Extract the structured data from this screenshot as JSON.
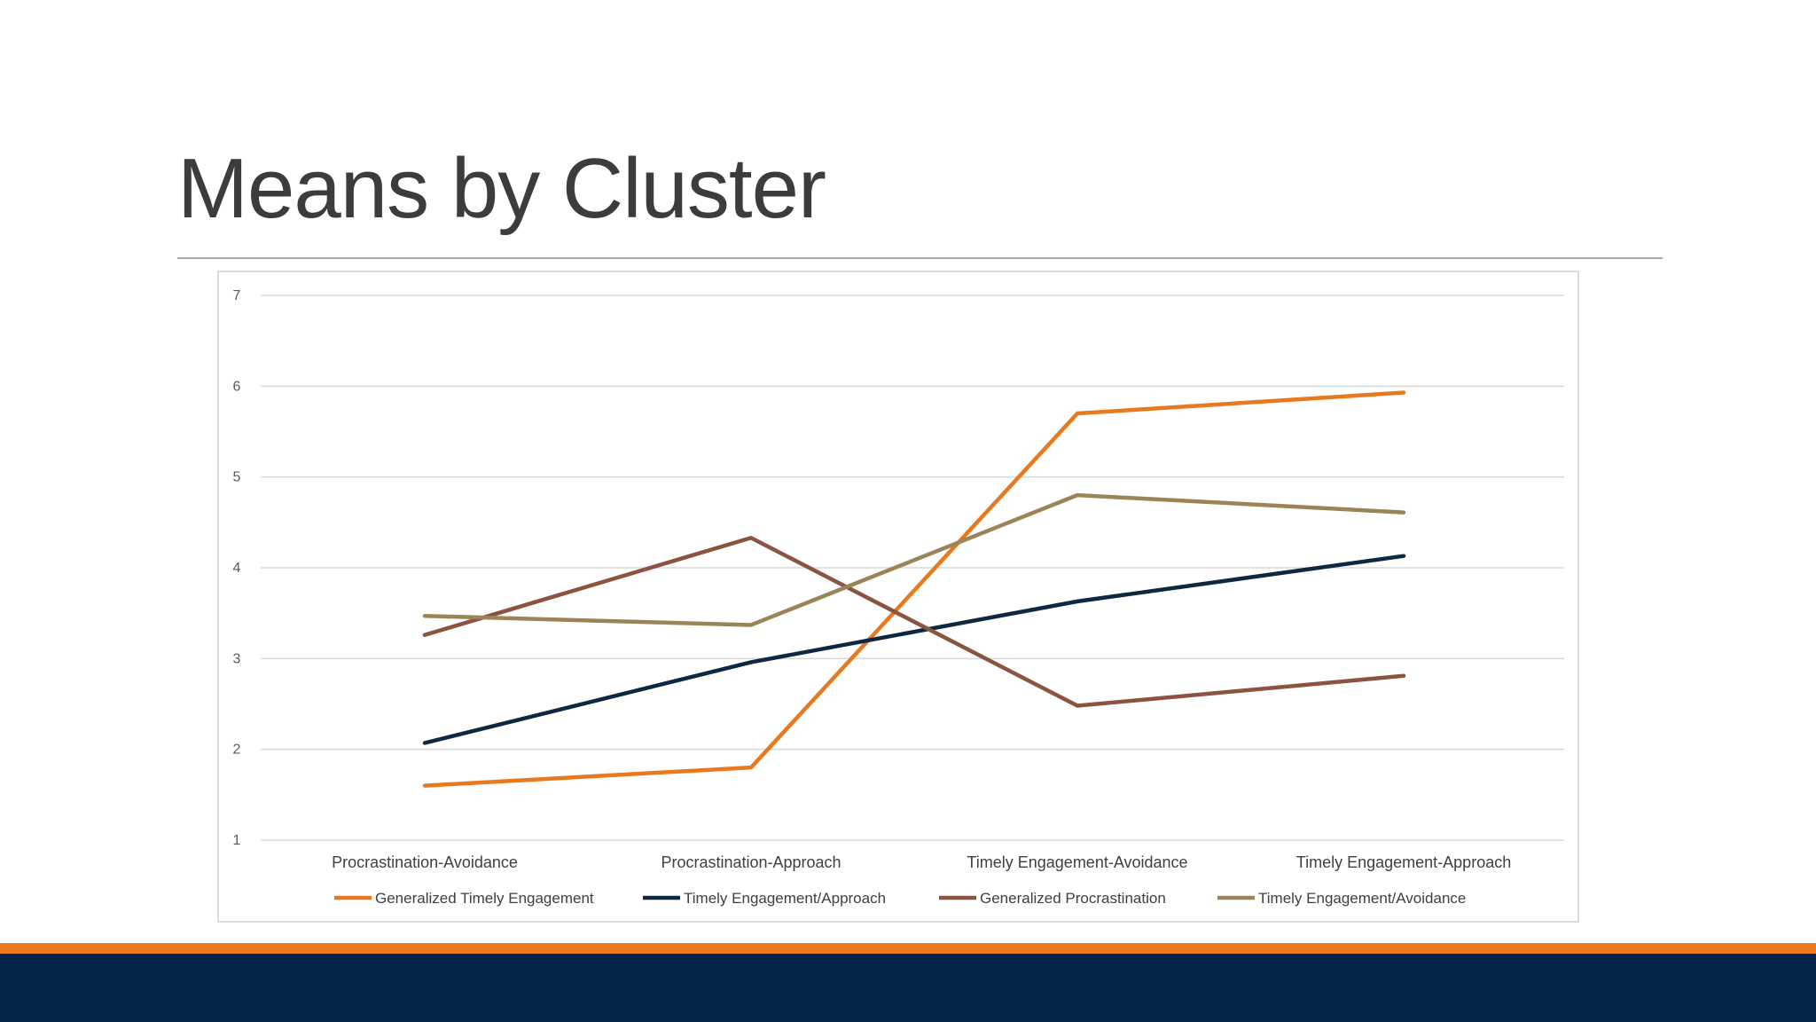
{
  "slide": {
    "title": "Means by Cluster"
  },
  "colors": {
    "accent_orange": "#e8791e",
    "navy": "#04244a",
    "title_text": "#3c3c3c",
    "gridline": "#d9d9d9"
  },
  "chart_data": {
    "type": "line",
    "title": "",
    "xlabel": "",
    "ylabel": "",
    "ylim": [
      1,
      7
    ],
    "yticks": [
      1,
      2,
      3,
      4,
      5,
      6,
      7
    ],
    "grid": true,
    "legend_position": "bottom",
    "categories": [
      "Procrastination-Avoidance",
      "Procrastination-Approach",
      "Timely Engagement-Avoidance",
      "Timely Engagement-Approach"
    ],
    "series": [
      {
        "name": "Generalized Timely Engagement",
        "color": "#e8791e",
        "values": [
          1.6,
          1.8,
          5.7,
          5.93
        ]
      },
      {
        "name": "Timely Engagement/Approach",
        "color": "#0e2844",
        "values": [
          2.07,
          2.96,
          3.63,
          4.13
        ]
      },
      {
        "name": "Generalized Procrastination",
        "color": "#8b5340",
        "values": [
          3.26,
          4.33,
          2.48,
          2.81
        ]
      },
      {
        "name": "Timely Engagement/Avoidance",
        "color": "#9a8458",
        "values": [
          3.47,
          3.37,
          4.8,
          4.61
        ]
      }
    ]
  }
}
